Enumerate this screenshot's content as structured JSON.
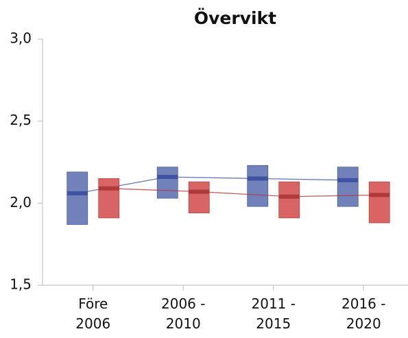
{
  "chart_data": {
    "type": "range",
    "title": "Övervikt",
    "categories": [
      [
        "Före",
        "2006"
      ],
      [
        "2006 -",
        "2010"
      ],
      [
        "2011 -",
        "2015"
      ],
      [
        "2016 -",
        "2020"
      ]
    ],
    "series": [
      {
        "color": "#6a7cb8",
        "median_color": "#3f53a0",
        "low": [
          1.87,
          2.03,
          1.98,
          1.98
        ],
        "high": [
          2.19,
          2.22,
          2.23,
          2.22
        ],
        "values": [
          2.06,
          2.16,
          2.15,
          2.14
        ]
      },
      {
        "color": "#d65c5c",
        "median_color": "#b03a3a",
        "low": [
          1.91,
          1.94,
          1.91,
          1.88
        ],
        "high": [
          2.15,
          2.13,
          2.13,
          2.13
        ],
        "values": [
          2.09,
          2.07,
          2.04,
          2.05
        ]
      }
    ],
    "ylim": [
      1.5,
      3.0
    ],
    "yticks": [
      {
        "value": 1.5,
        "label": "1,5"
      },
      {
        "value": 2.0,
        "label": "2,0"
      },
      {
        "value": 2.5,
        "label": "2,5"
      },
      {
        "value": 3.0,
        "label": "3,0"
      }
    ]
  }
}
